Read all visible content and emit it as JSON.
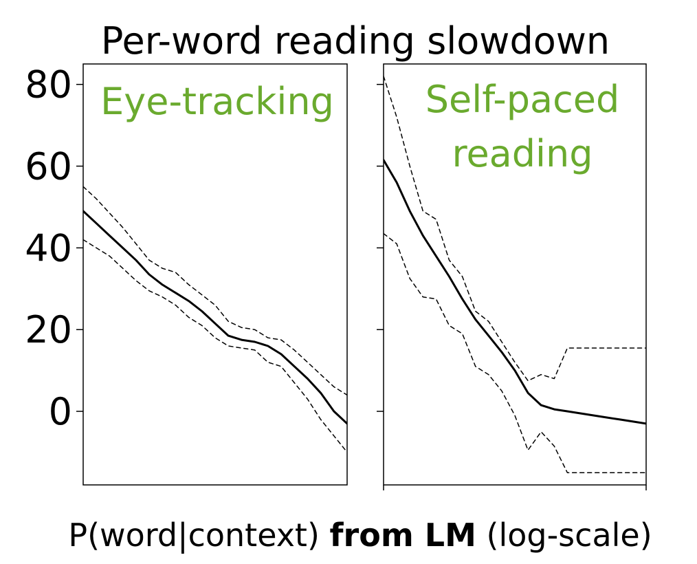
{
  "chart_data": {
    "type": "line",
    "title": "Per-word reading slowdown",
    "xlabel": {
      "prefix": "P(word|context) ",
      "bold": "from LM",
      "suffix": " (log-scale)"
    },
    "ylim": [
      -18,
      85
    ],
    "yticks": [
      0,
      20,
      40,
      60,
      80
    ],
    "xlim": [
      0,
      1
    ],
    "grid": false,
    "colors": {
      "label": "#6aaa2e",
      "line": "#000000"
    },
    "panels": [
      {
        "label_lines": [
          "Eye-tracking"
        ],
        "x": [
          0,
          0.05,
          0.1,
          0.15,
          0.2,
          0.25,
          0.3,
          0.35,
          0.4,
          0.45,
          0.5,
          0.55,
          0.6,
          0.65,
          0.7,
          0.75,
          0.8,
          0.85,
          0.9,
          0.95,
          1.0
        ],
        "series": [
          {
            "role": "estimate",
            "style": "solid",
            "values": [
              49,
              46,
              43,
              40,
              37,
              33.5,
              31,
              29,
              27,
              24.5,
              21.5,
              18.5,
              17.5,
              17,
              16,
              14,
              11,
              8,
              4.5,
              0,
              -3
            ]
          },
          {
            "role": "upper",
            "style": "dashed",
            "values": [
              55,
              52,
              48.5,
              45,
              41,
              37,
              35,
              34,
              31,
              28.5,
              26,
              22,
              20.5,
              20,
              18,
              17.5,
              15,
              12,
              9,
              6,
              4
            ]
          },
          {
            "role": "lower",
            "style": "dashed",
            "values": [
              42,
              40,
              38,
              35,
              32,
              29.5,
              28,
              26,
              23,
              21,
              18,
              16,
              15.5,
              15,
              12,
              11,
              7,
              3,
              -2,
              -6,
              -10
            ]
          }
        ]
      },
      {
        "label_lines": [
          "Self-paced",
          "reading"
        ],
        "x": [
          0,
          0.05,
          0.1,
          0.15,
          0.2,
          0.25,
          0.3,
          0.35,
          0.4,
          0.45,
          0.5,
          0.55,
          0.6,
          0.65,
          0.7,
          0.75,
          0.8,
          0.85,
          0.9,
          0.95,
          1.0
        ],
        "series": [
          {
            "role": "estimate",
            "style": "solid",
            "values": [
              61.5,
              56,
              49,
              43,
              38,
              33,
              27.5,
              22.5,
              18.5,
              14.5,
              10,
              4.5,
              1.5,
              0.5,
              0,
              -0.5,
              -1,
              -1.5,
              -2,
              -2.5,
              -3
            ]
          },
          {
            "role": "upper",
            "style": "dashed",
            "values": [
              82,
              72,
              60,
              49,
              47,
              37,
              33,
              24.5,
              22,
              17,
              12,
              7.5,
              9,
              8,
              15.5,
              15.5,
              15.5,
              15.5,
              15.5,
              15.5,
              15.5
            ]
          },
          {
            "role": "lower",
            "style": "dashed",
            "values": [
              43.5,
              41,
              32.5,
              28,
              27.5,
              21,
              19,
              11,
              9,
              5,
              -1,
              -9.5,
              -5,
              -8.5,
              -15,
              -15,
              -15,
              -15,
              -15,
              -15,
              -15
            ]
          }
        ]
      }
    ]
  }
}
